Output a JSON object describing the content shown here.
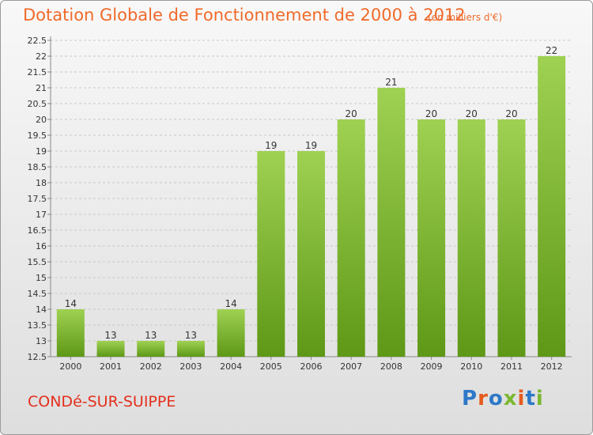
{
  "header": {
    "title": "Dotation Globale de Fonctionnement de 2000 à 2012",
    "unit": "(en milliers d'€)"
  },
  "footer": {
    "commune": "CONDé-SUR-SUIPPE",
    "logo_text": "Proxiti"
  },
  "colors": {
    "title": "#f06a2a",
    "commune": "#e3301d",
    "bar_top": "#9fd152",
    "bar_bottom": "#5e9816",
    "logo_letters": [
      "#2d78c8",
      "#e55b1e",
      "#2d78c8",
      "#7ab830",
      "#e55b1e",
      "#2d78c8",
      "#7ab830"
    ]
  },
  "chart_data": {
    "type": "bar",
    "title": "Dotation Globale de Fonctionnement de 2000 à 2012",
    "subtitle": "(en milliers d'€)",
    "categories": [
      "2000",
      "2001",
      "2002",
      "2003",
      "2004",
      "2005",
      "2006",
      "2007",
      "2008",
      "2009",
      "2010",
      "2011",
      "2012"
    ],
    "values": [
      14,
      13,
      13,
      13,
      14,
      19,
      19,
      20,
      21,
      20,
      20,
      20,
      22
    ],
    "value_labels": [
      "14",
      "13",
      "13",
      "13",
      "14",
      "19",
      "19",
      "20",
      "21",
      "20",
      "20",
      "20",
      "22"
    ],
    "ylim": [
      12.5,
      22.5
    ],
    "yticks": [
      "12.5",
      "13",
      "13.5",
      "14",
      "14.5",
      "15",
      "15.5",
      "16",
      "16.5",
      "17",
      "17.5",
      "18",
      "18.5",
      "19",
      "19.5",
      "20",
      "20.5",
      "21",
      "21.5",
      "22",
      "22.5"
    ],
    "grid": true,
    "xlabel": "",
    "ylabel": ""
  }
}
